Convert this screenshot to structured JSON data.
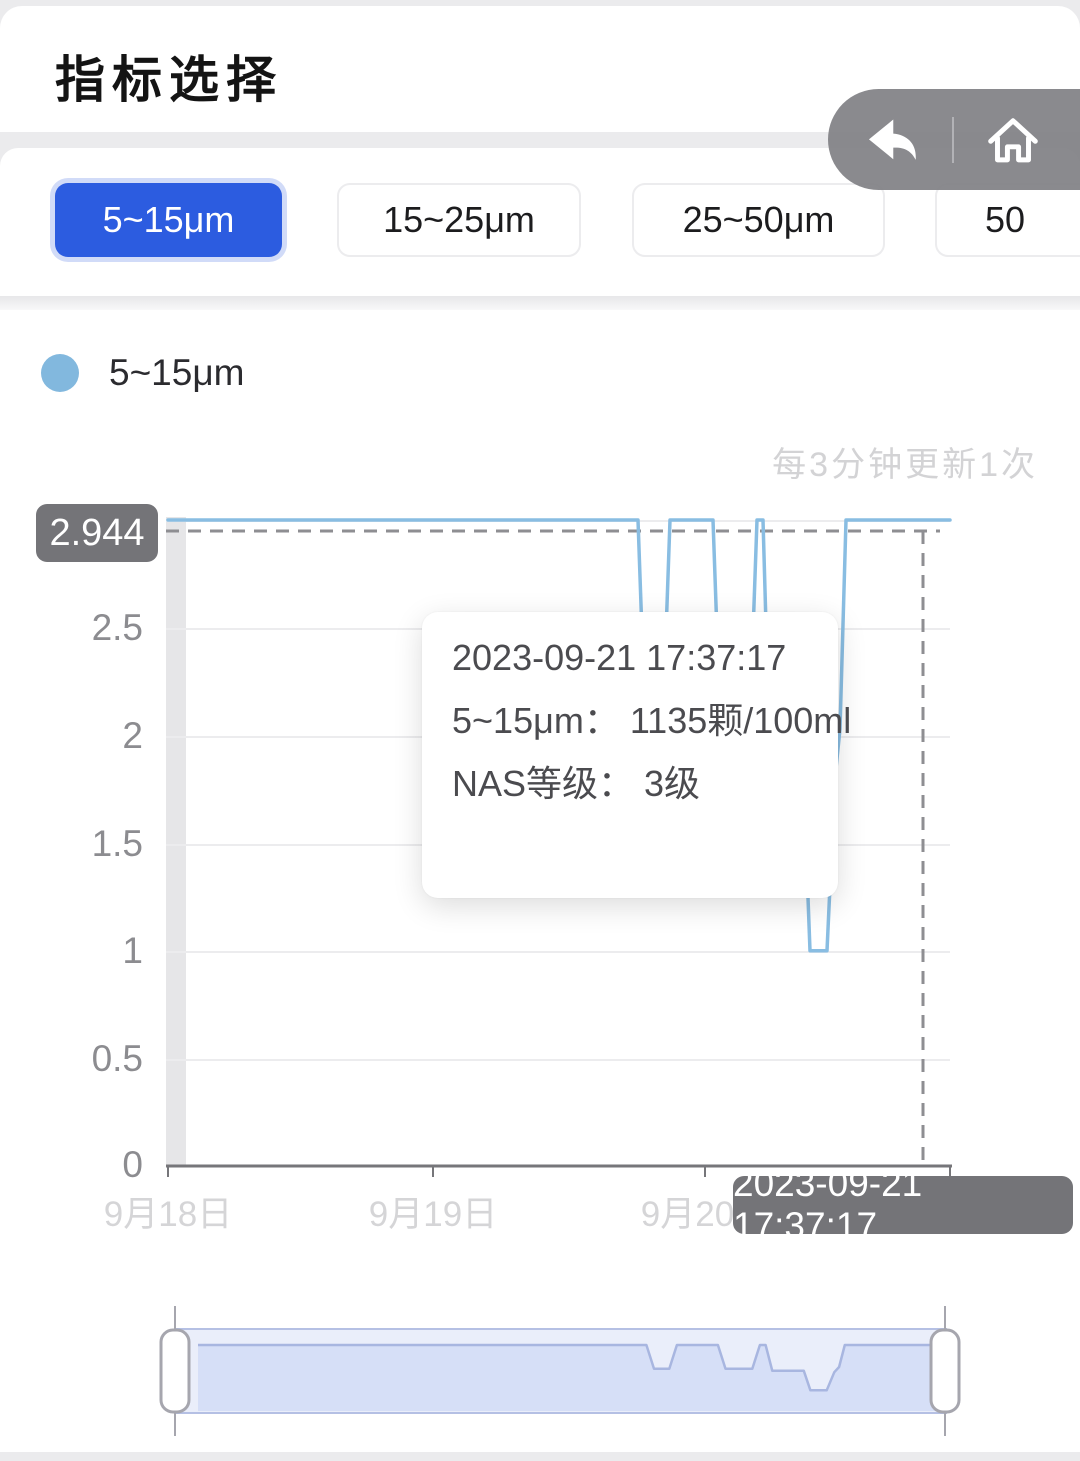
{
  "header": {
    "title": "指标选择"
  },
  "nav": {
    "back_icon": "back-arrow",
    "home_icon": "home"
  },
  "tabs": {
    "selected_color": "#2c5ce0",
    "items": [
      {
        "label": "5~15μm",
        "selected": true
      },
      {
        "label": "15~25μm",
        "selected": false
      },
      {
        "label": "25~50μm",
        "selected": false
      },
      {
        "label": "50",
        "selected": false
      }
    ]
  },
  "legend": {
    "label": "5~15μm",
    "color": "#82b8de"
  },
  "chart_data": {
    "type": "line",
    "title": "",
    "update_note": "每3分钟更新1次",
    "ylim": [
      0,
      3
    ],
    "grid": true,
    "y_ticks": [
      "0",
      "0.5",
      "1",
      "1.5",
      "2",
      "2.5"
    ],
    "x_tick_labels": [
      "9月18日",
      "9月19日",
      "9月20日"
    ],
    "y_axis_pointer_label": "2.944",
    "x_axis_pointer_label": "2023-09-21 17:37:17",
    "series": [
      {
        "name": "5~15μm",
        "color": "#89bde2",
        "points": [
          [
            168,
            3.0
          ],
          [
            638,
            3.0
          ],
          [
            646,
            1.95
          ],
          [
            662,
            1.95
          ],
          [
            670,
            3.0
          ],
          [
            713,
            3.0
          ],
          [
            721,
            1.95
          ],
          [
            749,
            1.95
          ],
          [
            757,
            3.0
          ],
          [
            763,
            3.0
          ],
          [
            770,
            1.86
          ],
          [
            803,
            1.86
          ],
          [
            810,
            1.0
          ],
          [
            827,
            1.0
          ],
          [
            835,
            1.8
          ],
          [
            840,
            2.03
          ],
          [
            846,
            3.0
          ],
          [
            950,
            3.0
          ]
        ]
      }
    ],
    "tooltip": {
      "lines": [
        "2023-09-21 17:37:17",
        "5~15μm：  1135颗/100ml",
        "NAS等级：  3级"
      ]
    }
  }
}
